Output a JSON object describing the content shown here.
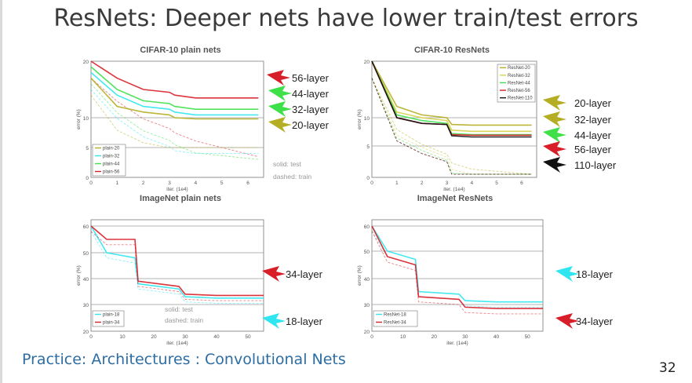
{
  "slide": {
    "title": "ResNets: Deeper nets have lower train/test errors",
    "footer": "Practice: Architectures : Convolutional Nets",
    "page_number": "32"
  },
  "colors": {
    "footer_blue": "#2d6da3",
    "red": "#d81e28",
    "green": "#3ee04a",
    "cyan": "#2fe6f0",
    "olive": "#b5ae24",
    "black": "#111111"
  },
  "chart_data": [
    {
      "type": "line",
      "title": "CIFAR-10 plain nets",
      "xlabel": "iter. (1e4)",
      "ylabel": "error (%)",
      "xlim": [
        0,
        6
      ],
      "ylim": [
        0,
        20
      ],
      "x_ticks": [
        "0",
        "1",
        "2",
        "3",
        "4",
        "5",
        "6"
      ],
      "y_ticks": [
        "0",
        "5",
        "10",
        "20"
      ],
      "legend": [
        "plain-20",
        "plain-32",
        "plain-44",
        "plain-56"
      ],
      "note": [
        "solid: test",
        "dashed: train"
      ],
      "series": [
        {
          "name": "plain-56",
          "test": [
            [
              0,
              20
            ],
            [
              1,
              17
            ],
            [
              2,
              15
            ],
            [
              3,
              14.5
            ],
            [
              3.2,
              14
            ],
            [
              4,
              13.5
            ],
            [
              5,
              13.5
            ],
            [
              6.4,
              13.5
            ]
          ]
        },
        {
          "name": "plain-44",
          "test": [
            [
              0,
              19
            ],
            [
              1,
              15
            ],
            [
              2,
              13
            ],
            [
              3,
              12.5
            ],
            [
              3.2,
              12
            ],
            [
              4,
              11.5
            ],
            [
              6.4,
              11.5
            ]
          ]
        },
        {
          "name": "plain-32",
          "test": [
            [
              0,
              18
            ],
            [
              1,
              14
            ],
            [
              2,
              12
            ],
            [
              3,
              11.5
            ],
            [
              3.2,
              11
            ],
            [
              4,
              10.5
            ],
            [
              6.4,
              10.5
            ]
          ]
        },
        {
          "name": "plain-20",
          "test": [
            [
              0,
              17
            ],
            [
              1,
              12
            ],
            [
              2,
              11
            ],
            [
              3,
              10.5
            ],
            [
              3.2,
              10
            ],
            [
              4,
              9.8
            ],
            [
              6.4,
              9.8
            ]
          ]
        }
      ],
      "annotations": [
        {
          "label": "56-layer",
          "color": "#d81e28"
        },
        {
          "label": "44-layer",
          "color": "#3ee04a"
        },
        {
          "label": "32-layer",
          "color": "#3ee04a"
        },
        {
          "label": "20-layer",
          "color": "#b5ae24"
        }
      ]
    },
    {
      "type": "line",
      "title": "CIFAR-10 ResNets",
      "xlabel": "iter. (1e4)",
      "ylabel": "error (%)",
      "xlim": [
        0,
        6
      ],
      "ylim": [
        0,
        20
      ],
      "x_ticks": [
        "0",
        "1",
        "2",
        "3",
        "4",
        "5",
        "6"
      ],
      "y_ticks": [
        "0",
        "5",
        "10",
        "20"
      ],
      "legend": [
        "ResNet-20",
        "ResNet-32",
        "ResNet-44",
        "ResNet-56",
        "ResNet-110"
      ],
      "series": [
        {
          "name": "ResNet-20",
          "test": [
            [
              0,
              20
            ],
            [
              1,
              12
            ],
            [
              2,
              10.5
            ],
            [
              3,
              10
            ],
            [
              3.2,
              8.8
            ],
            [
              4,
              8.7
            ],
            [
              6.4,
              8.7
            ]
          ]
        },
        {
          "name": "ResNet-32",
          "test": [
            [
              0,
              20
            ],
            [
              1,
              11
            ],
            [
              2,
              10
            ],
            [
              3,
              9.5
            ],
            [
              3.2,
              7.8
            ],
            [
              4,
              7.6
            ],
            [
              6.4,
              7.6
            ]
          ]
        },
        {
          "name": "ResNet-44",
          "test": [
            [
              0,
              20
            ],
            [
              1,
              10.5
            ],
            [
              2,
              9.5
            ],
            [
              3,
              9
            ],
            [
              3.2,
              7.2
            ],
            [
              4,
              7
            ],
            [
              6.4,
              7
            ]
          ]
        },
        {
          "name": "ResNet-56",
          "test": [
            [
              0,
              20
            ],
            [
              1,
              10
            ],
            [
              2,
              9
            ],
            [
              3,
              8.8
            ],
            [
              3.2,
              7
            ],
            [
              4,
              6.9
            ],
            [
              6.4,
              6.9
            ]
          ]
        },
        {
          "name": "ResNet-110",
          "test": [
            [
              0,
              20
            ],
            [
              1,
              10
            ],
            [
              2,
              9
            ],
            [
              3,
              8.8
            ],
            [
              3.2,
              6.8
            ],
            [
              4,
              6.6
            ],
            [
              6.4,
              6.6
            ]
          ]
        }
      ],
      "annotations": [
        {
          "label": "20-layer",
          "color": "#b5ae24"
        },
        {
          "label": "32-layer",
          "color": "#b5ae24"
        },
        {
          "label": "44-layer",
          "color": "#3ee04a"
        },
        {
          "label": "56-layer",
          "color": "#d81e28"
        },
        {
          "label": "110-layer",
          "color": "#111111"
        }
      ]
    },
    {
      "type": "line",
      "title": "ImageNet plain nets",
      "xlabel": "iter. (1e4)",
      "ylabel": "error (%)",
      "xlim": [
        0,
        50
      ],
      "ylim": [
        20,
        60
      ],
      "x_ticks": [
        "0",
        "10",
        "20",
        "30",
        "40",
        "50"
      ],
      "y_ticks": [
        "20",
        "30",
        "40",
        "50",
        "60"
      ],
      "legend": [
        "plain-18",
        "plain-34"
      ],
      "note": [
        "solid: test",
        "dashed: train"
      ],
      "series": [
        {
          "name": "plain-18",
          "test": [
            [
              0,
              60
            ],
            [
              5,
              50
            ],
            [
              14,
              48
            ],
            [
              15,
              38
            ],
            [
              28,
              36
            ],
            [
              30,
              33
            ],
            [
              40,
              32.5
            ],
            [
              55,
              32.5
            ]
          ]
        },
        {
          "name": "plain-34",
          "test": [
            [
              0,
              60
            ],
            [
              5,
              55
            ],
            [
              14,
              55
            ],
            [
              15,
              39
            ],
            [
              28,
              37
            ],
            [
              30,
              34
            ],
            [
              40,
              33.5
            ],
            [
              55,
              33.5
            ]
          ]
        }
      ],
      "annotations": [
        {
          "label": "34-layer",
          "color": "#d81e28"
        },
        {
          "label": "18-layer",
          "color": "#2fe6f0"
        }
      ]
    },
    {
      "type": "line",
      "title": "ImageNet ResNets",
      "xlabel": "iter. (1e4)",
      "ylabel": "error (%)",
      "xlim": [
        0,
        50
      ],
      "ylim": [
        20,
        60
      ],
      "x_ticks": [
        "0",
        "10",
        "20",
        "30",
        "40",
        "50"
      ],
      "y_ticks": [
        "20",
        "30",
        "40",
        "50",
        "60"
      ],
      "legend": [
        "ResNet-18",
        "ResNet-34"
      ],
      "series": [
        {
          "name": "ResNet-18",
          "test": [
            [
              0,
              60
            ],
            [
              5,
              50
            ],
            [
              14,
              47
            ],
            [
              15,
              35
            ],
            [
              28,
              34
            ],
            [
              30,
              31.5
            ],
            [
              40,
              31
            ],
            [
              55,
              31
            ]
          ]
        },
        {
          "name": "ResNet-34",
          "test": [
            [
              0,
              60
            ],
            [
              5,
              48
            ],
            [
              14,
              45
            ],
            [
              15,
              33
            ],
            [
              28,
              32
            ],
            [
              30,
              29
            ],
            [
              40,
              28.5
            ],
            [
              55,
              28.5
            ]
          ]
        }
      ],
      "annotations": [
        {
          "label": "18-layer",
          "color": "#2fe6f0"
        },
        {
          "label": "34-layer",
          "color": "#d81e28"
        }
      ]
    }
  ]
}
